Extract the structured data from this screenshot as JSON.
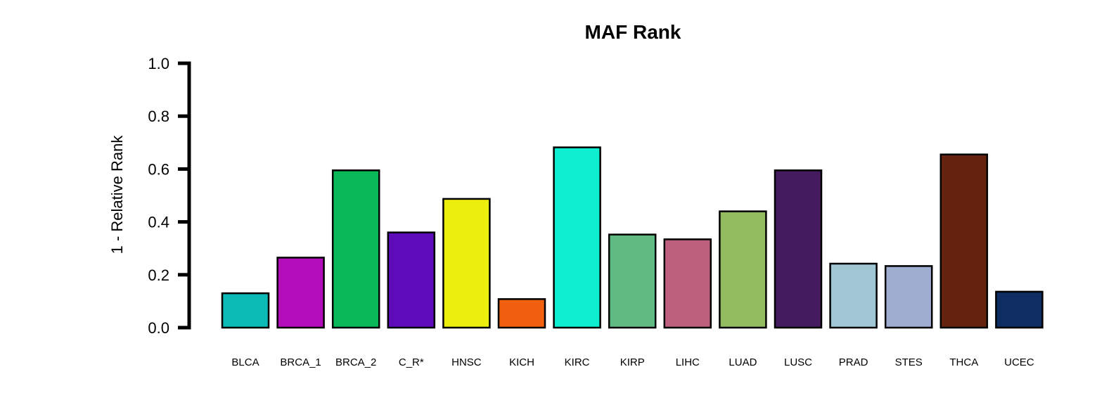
{
  "chart_data": {
    "type": "bar",
    "title": "MAF Rank",
    "xlabel": "",
    "ylabel": "1 - Relative Rank",
    "ylim": [
      0,
      1.0
    ],
    "yticks": [
      "0.0",
      "0.2",
      "0.4",
      "0.6",
      "0.8",
      "1.0"
    ],
    "ytick_values": [
      0.0,
      0.2,
      0.4,
      0.6,
      0.8,
      1.0
    ],
    "grid": false,
    "categories": [
      "BLCA",
      "BRCA_1",
      "BRCA_2",
      "C_R*",
      "HNSC",
      "KICH",
      "KIRC",
      "KIRP",
      "LIHC",
      "LUAD",
      "LUSC",
      "PRAD",
      "STES",
      "THCA",
      "UCEC"
    ],
    "values": [
      0.13,
      0.265,
      0.595,
      0.36,
      0.487,
      0.108,
      0.682,
      0.352,
      0.334,
      0.44,
      0.595,
      0.242,
      0.233,
      0.655,
      0.136
    ],
    "colors": [
      "#0cbab5",
      "#b30cba",
      "#09b959",
      "#5e0cba",
      "#ecee0c",
      "#f0600e",
      "#0defd0",
      "#5fbb82",
      "#bc607e",
      "#93bb5f",
      "#451b5f",
      "#a0c6d3",
      "#9eadd0",
      "#652310",
      "#0e2e63"
    ]
  }
}
